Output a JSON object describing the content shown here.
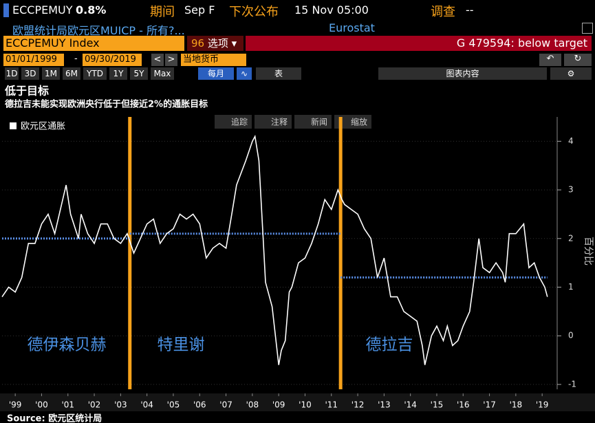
{
  "terminal": {
    "ticker": "ECCPEMUY",
    "last": "0.8%",
    "period_label": "期间",
    "period": "Sep F",
    "next_label": "下次公布",
    "next": "15 Nov 05:00",
    "survey_label": "调查",
    "survey": "--",
    "description": "欧盟统计局欧元区MUICP - 所有?...",
    "source_name": "Eurostat",
    "security": "ECCPEMUY Index",
    "options_code": "96",
    "options": "选项",
    "alert": "G 479594: below target",
    "start_date": "01/01/1999",
    "end_date": "09/30/2019",
    "currency": "当地货币",
    "ranges": [
      "1D",
      "3D",
      "1M",
      "6M",
      "YTD",
      "1Y",
      "5Y",
      "Max"
    ],
    "frequency": "每月",
    "table": "表",
    "chart_content": "图表内容",
    "tools": [
      "追踪",
      "注释",
      "新闻",
      "缩放"
    ]
  },
  "chart_data": {
    "type": "line",
    "title": "低于目标",
    "subtitle": "德拉吉未能实现欧洲央行低于但接近2%的通胀目标",
    "y_label": "百分比",
    "source": "Source: 欧元区统计局",
    "x": [
      1999.0,
      1999.25,
      1999.5,
      1999.75,
      2000.0,
      2000.25,
      2000.5,
      2000.75,
      2001.0,
      2001.43,
      2001.6,
      2001.9,
      2002.0,
      2002.25,
      2002.5,
      2002.75,
      2003.0,
      2003.25,
      2003.5,
      2003.75,
      2004.0,
      2004.25,
      2004.5,
      2004.75,
      2005.0,
      2005.25,
      2005.5,
      2005.75,
      2006.0,
      2006.25,
      2006.5,
      2006.75,
      2007.0,
      2007.25,
      2007.5,
      2007.75,
      2007.9,
      2008.25,
      2008.5,
      2008.6,
      2008.75,
      2008.9,
      2009.0,
      2009.25,
      2009.5,
      2009.6,
      2009.75,
      2009.9,
      2010.0,
      2010.25,
      2010.5,
      2010.75,
      2011.0,
      2011.25,
      2011.5,
      2011.75,
      2011.9,
      2012.0,
      2012.25,
      2012.5,
      2012.75,
      2013.0,
      2013.25,
      2013.5,
      2013.75,
      2014.0,
      2014.25,
      2014.5,
      2014.75,
      2014.95,
      2015.05,
      2015.3,
      2015.5,
      2015.75,
      2015.9,
      2016.1,
      2016.3,
      2016.5,
      2016.75,
      2016.9,
      2017.1,
      2017.25,
      2017.5,
      2017.75,
      2018.0,
      2018.1,
      2018.25,
      2018.5,
      2018.8,
      2019.0,
      2019.2,
      2019.4,
      2019.6,
      2019.7
    ],
    "series": [
      {
        "name": "欧元区通胀",
        "color": "#ffffff",
        "values": [
          0.8,
          1.0,
          0.9,
          1.2,
          1.9,
          1.9,
          2.3,
          2.5,
          2.1,
          3.1,
          2.5,
          2.0,
          2.5,
          2.1,
          1.9,
          2.3,
          2.3,
          2.0,
          1.9,
          2.1,
          1.7,
          2.0,
          2.3,
          2.4,
          1.9,
          2.1,
          2.2,
          2.5,
          2.4,
          2.5,
          2.3,
          1.6,
          1.8,
          1.9,
          1.8,
          2.6,
          3.1,
          3.6,
          4.0,
          4.1,
          3.6,
          2.1,
          1.1,
          0.6,
          -0.6,
          -0.3,
          -0.1,
          0.9,
          1.0,
          1.5,
          1.6,
          1.9,
          2.3,
          2.8,
          2.6,
          3.0,
          2.8,
          2.7,
          2.6,
          2.5,
          2.2,
          2.0,
          1.2,
          1.6,
          0.8,
          0.8,
          0.5,
          0.4,
          0.3,
          -0.2,
          -0.6,
          0.0,
          0.2,
          -0.1,
          0.2,
          -0.2,
          -0.1,
          0.2,
          0.5,
          1.1,
          2.0,
          1.4,
          1.3,
          1.5,
          1.3,
          1.1,
          2.1,
          2.1,
          2.3,
          1.4,
          1.5,
          1.2,
          1.0,
          0.8
        ]
      }
    ],
    "targets": [
      {
        "value": 2.0,
        "from": 1999.0,
        "to": 2003.85
      },
      {
        "value": 2.1,
        "from": 2003.85,
        "to": 2011.85
      },
      {
        "value": 1.2,
        "from": 2011.85,
        "to": 2019.7
      }
    ],
    "eras": [
      2003.85,
      2011.85
    ],
    "annotations": [
      "德伊森贝赫",
      "特里谢",
      "德拉吉"
    ],
    "xlim": [
      1999.0,
      2020.07
    ],
    "ylim": [
      -1.1,
      4.5
    ],
    "xticks": [
      {
        "value": 1999.5,
        "label": "'99"
      },
      {
        "value": 2000.5,
        "label": "'00"
      },
      {
        "value": 2001.5,
        "label": "'01"
      },
      {
        "value": 2002.5,
        "label": "'02"
      },
      {
        "value": 2003.5,
        "label": "'03"
      },
      {
        "value": 2004.5,
        "label": "'04"
      },
      {
        "value": 2005.5,
        "label": "'05"
      },
      {
        "value": 2006.5,
        "label": "'06"
      },
      {
        "value": 2007.5,
        "label": "'07"
      },
      {
        "value": 2008.5,
        "label": "'08"
      },
      {
        "value": 2009.5,
        "label": "'09"
      },
      {
        "value": 2010.5,
        "label": "'10"
      },
      {
        "value": 2011.5,
        "label": "'11"
      },
      {
        "value": 2012.5,
        "label": "'12"
      },
      {
        "value": 2013.5,
        "label": "'13"
      },
      {
        "value": 2014.5,
        "label": "'14"
      },
      {
        "value": 2015.5,
        "label": "'15"
      },
      {
        "value": 2016.5,
        "label": "'16"
      },
      {
        "value": 2017.5,
        "label": "'17"
      },
      {
        "value": 2018.5,
        "label": "'18"
      },
      {
        "value": 2019.5,
        "label": "'19"
      }
    ],
    "yticks": [
      -1,
      0,
      1,
      2,
      3,
      4
    ],
    "grid": true,
    "target_color": "#5b8fe8",
    "era_color": "#f7a21b",
    "annotation_color": "#4a90e2"
  }
}
